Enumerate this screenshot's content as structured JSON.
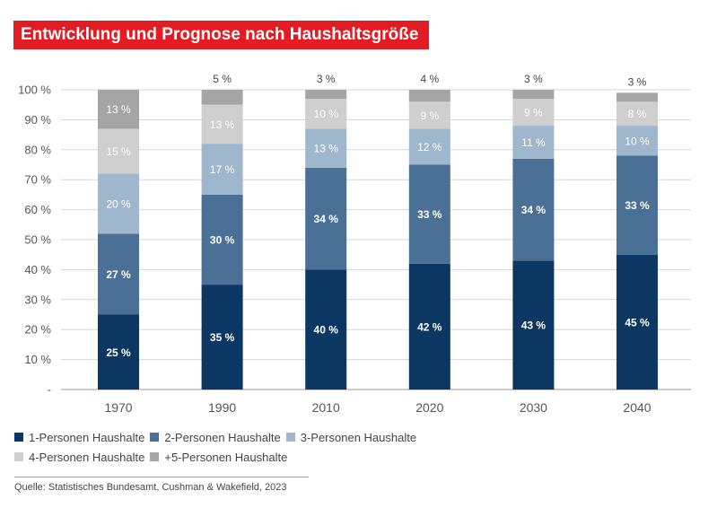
{
  "title": "Entwicklung und Prognose nach Haushaltsgröße",
  "source": "Quelle: Statistisches Bundesamt, Cushman & Wakefield, 2023",
  "colors": {
    "title_bg": "#e31b23",
    "series": [
      "#0c3762",
      "#4b7095",
      "#9fb7cc",
      "#cfcfcf",
      "#a5a5a5"
    ]
  },
  "chart_data": {
    "type": "bar",
    "stacked": true,
    "categories": [
      "1970",
      "1990",
      "2010",
      "2020",
      "2030",
      "2040"
    ],
    "y_ticks": [
      "-",
      "10 %",
      "20 %",
      "30 %",
      "40 %",
      "50 %",
      "60 %",
      "70 %",
      "80 %",
      "90 %",
      "100 %"
    ],
    "ylim": [
      0,
      100
    ],
    "grid": true,
    "legend_position": "bottom",
    "series": [
      {
        "name": "1-Personen Haushalte",
        "values": [
          25,
          35,
          40,
          42,
          43,
          45
        ],
        "labels": [
          "25 %",
          "35 %",
          "40 %",
          "42 %",
          "43 %",
          "45 %"
        ]
      },
      {
        "name": "2-Personen Haushalte",
        "values": [
          27,
          30,
          34,
          33,
          34,
          33
        ],
        "labels": [
          "27 %",
          "30 %",
          "34 %",
          "33 %",
          "34 %",
          "33 %"
        ]
      },
      {
        "name": "3-Personen Haushalte",
        "values": [
          20,
          17,
          13,
          12,
          11,
          10
        ],
        "labels": [
          "20 %",
          "17 %",
          "13 %",
          "12 %",
          "11 %",
          "10 %"
        ]
      },
      {
        "name": "4-Personen Haushalte",
        "values": [
          15,
          13,
          10,
          9,
          9,
          8
        ],
        "labels": [
          "15 %",
          "13 %",
          "10 %",
          "9 %",
          "9 %",
          "8 %"
        ]
      },
      {
        "name": "+5-Personen Haushalte",
        "values": [
          13,
          5,
          3,
          4,
          3,
          3
        ],
        "labels": [
          "13 %",
          "5 %",
          "3 %",
          "4 %",
          "3 %",
          "3 %"
        ]
      }
    ]
  }
}
